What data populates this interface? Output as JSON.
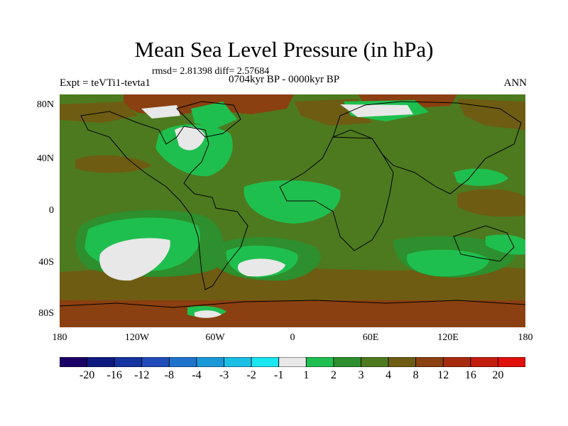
{
  "title": "Mean Sea Level Pressure (in hPa)",
  "stats": "rmsd= 2.81398 diff= 2.57684",
  "experiment": "Expt = teVTi1-tevta1",
  "period": "0704kyr BP - 0000kyr BP",
  "season": "ANN",
  "lat_labels": [
    "80N",
    "40N",
    "0",
    "40S",
    "80S"
  ],
  "lon_labels": [
    "180",
    "120W",
    "60W",
    "0",
    "60E",
    "120E",
    "180"
  ],
  "colorbar": {
    "labels": [
      "-20",
      "-16",
      "-12",
      "-8",
      "-4",
      "-3",
      "-2",
      "-1",
      "1",
      "2",
      "3",
      "4",
      "8",
      "12",
      "16",
      "20"
    ],
    "colors": [
      "#1a0066",
      "#0d1a80",
      "#1433a0",
      "#1f4cb8",
      "#1f73cc",
      "#1a99d9",
      "#1abfe6",
      "#19e6f0",
      "#e8e8e8",
      "#1fbf4f",
      "#2d8f2d",
      "#4d7a1f",
      "#6e5c12",
      "#8a4010",
      "#a62a0d",
      "#c21c0c",
      "#e0100a"
    ]
  },
  "map_colors": {
    "ocean_base": "#4d7a1f",
    "warm": "#6e5c12",
    "hot": "#8a4010",
    "mid": "#2d8f2d",
    "cool": "#1fbf4f",
    "cold": "#e8e8e8",
    "coast": "#000000"
  }
}
